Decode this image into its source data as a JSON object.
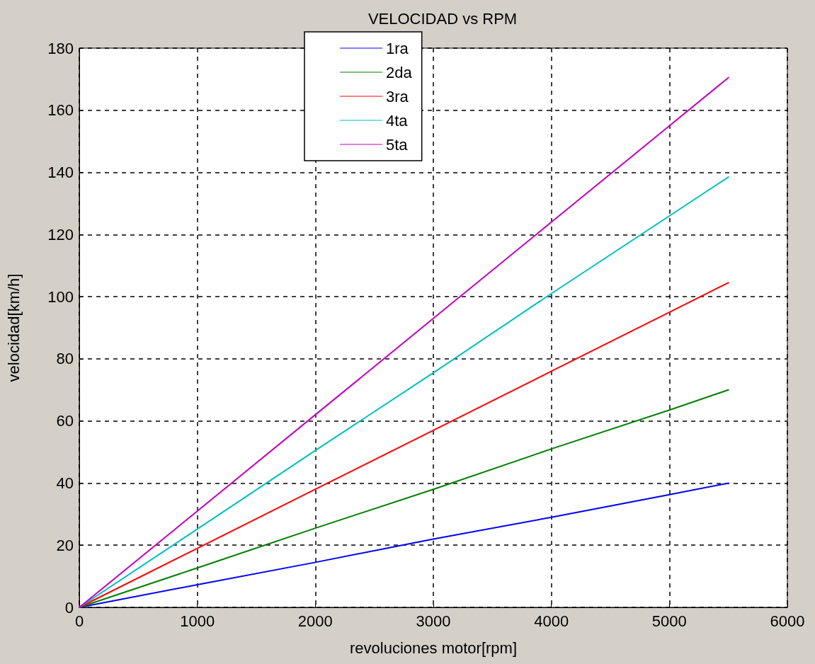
{
  "chart_data": {
    "type": "line",
    "title": "VELOCIDAD vs RPM",
    "xlabel": "revoluciones motor[rpm]",
    "ylabel": "velocidad[km/h]",
    "x": [
      0,
      1000,
      2000,
      3000,
      4000,
      5000,
      5500
    ],
    "series": [
      {
        "name": "1ra",
        "color": "#0000ff",
        "values": [
          0,
          7.3,
          14.5,
          22,
          29,
          36.3,
          40
        ]
      },
      {
        "name": "2da",
        "color": "#008000",
        "values": [
          0,
          12.7,
          25.5,
          38,
          51,
          63.5,
          70
        ]
      },
      {
        "name": "3ra",
        "color": "#ff0000",
        "values": [
          0,
          19,
          38,
          57,
          76,
          95,
          104.5
        ]
      },
      {
        "name": "4ta",
        "color": "#00bfbf",
        "values": [
          0,
          25.2,
          50.5,
          75.5,
          101,
          126,
          138.5
        ]
      },
      {
        "name": "5ta",
        "color": "#bf00bf",
        "values": [
          0,
          31,
          62,
          93,
          124,
          155,
          170.5
        ]
      }
    ],
    "xlim": [
      0,
      6000
    ],
    "xticks": [
      0,
      1000,
      2000,
      3000,
      4000,
      5000,
      6000
    ],
    "ylim": [
      0,
      180
    ],
    "yticks": [
      0,
      20,
      40,
      60,
      80,
      100,
      120,
      140,
      160,
      180
    ],
    "grid": true,
    "legend": "top",
    "marker": "none",
    "line_style": "solid"
  }
}
